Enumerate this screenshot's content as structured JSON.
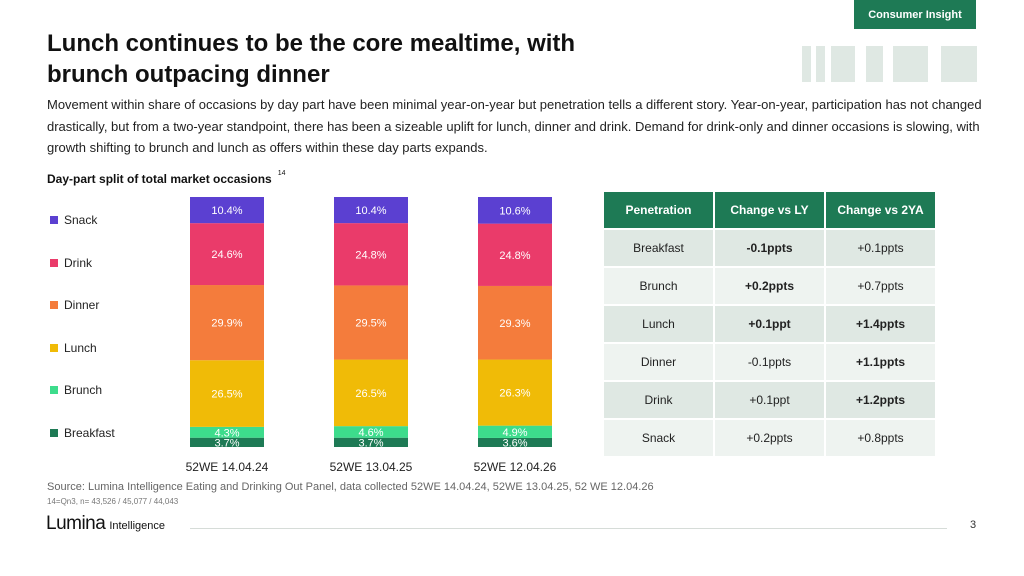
{
  "tag": "Consumer Insight",
  "title_lines": [
    "Lunch continues to be the core mealtime, with",
    "brunch outpacing dinner"
  ],
  "intro": "Movement within share of occasions by day part have been minimal year-on-year but penetration tells a different story. Year-on-year, participation has not changed drastically, but from a two-year standpoint, there has been a sizeable uplift for lunch, dinner and drink. Demand for drink-only and dinner occasions is slowing, with growth shifting to brunch and lunch as offers within these day parts expands.",
  "chart_data": {
    "type": "bar",
    "stacked": true,
    "title": "Day-part split of total market occasions",
    "title_superscript": "14",
    "categories": [
      "52WE 14.04.24",
      "52WE 13.04.25",
      "52WE 12.04.26"
    ],
    "series": [
      {
        "name": "Breakfast",
        "color": "#1e7a55",
        "values": [
          3.7,
          3.7,
          3.6
        ],
        "labels": [
          "3.7%",
          "3.7%",
          "3.6%"
        ]
      },
      {
        "name": "Brunch",
        "color": "#3ddc8c",
        "values": [
          4.3,
          4.6,
          4.9
        ],
        "labels": [
          "4.3%",
          "4.6%",
          "4.9%"
        ]
      },
      {
        "name": "Lunch",
        "color": "#f0bb07",
        "values": [
          26.5,
          26.5,
          26.3
        ],
        "labels": [
          "26.5%",
          "26.5%",
          "26.3%"
        ]
      },
      {
        "name": "Dinner",
        "color": "#f47c3c",
        "values": [
          29.9,
          29.5,
          29.3
        ],
        "labels": [
          "29.9%",
          "29.5%",
          "29.3%"
        ]
      },
      {
        "name": "Drink",
        "color": "#ea3b6a",
        "values": [
          24.6,
          24.8,
          24.8
        ],
        "labels": [
          "24.6%",
          "24.8%",
          "24.8%"
        ]
      },
      {
        "name": "Snack",
        "color": "#5b40d1",
        "values": [
          10.4,
          10.4,
          10.6
        ],
        "labels": [
          "10.4%",
          "10.4%",
          "10.6%"
        ]
      }
    ],
    "legend_position": "left",
    "ylim": [
      0,
      100
    ]
  },
  "table": {
    "headers": [
      "Penetration",
      "Change vs LY",
      "Change vs 2YA"
    ],
    "rows": [
      {
        "label": "Breakfast",
        "ly": "-0.1ppts",
        "ly_style": "neg",
        "ya": "+0.1ppts",
        "ya_style": ""
      },
      {
        "label": "Brunch",
        "ly": "+0.2ppts",
        "ly_style": "pos",
        "ya": "+0.7ppts",
        "ya_style": ""
      },
      {
        "label": "Lunch",
        "ly": "+0.1ppt",
        "ly_style": "pos",
        "ya": "+1.4ppts",
        "ya_style": "pos"
      },
      {
        "label": "Dinner",
        "ly": "-0.1ppts",
        "ly_style": "",
        "ya": "+1.1ppts",
        "ya_style": "pos"
      },
      {
        "label": "Drink",
        "ly": "+0.1ppt",
        "ly_style": "",
        "ya": "+1.2ppts",
        "ya_style": "pos"
      },
      {
        "label": "Snack",
        "ly": "+0.2ppts",
        "ly_style": "",
        "ya": "+0.8ppts",
        "ya_style": ""
      }
    ]
  },
  "source": "Source: Lumina Intelligence Eating and Drinking Out Panel, data collected 52WE 14.04.24, 52WE 13.04.25, 52 WE 12.04.26",
  "note": "14=Qn3, n= 43,526 / 45,077 / 44,043",
  "logo": {
    "main": "Lumina",
    "sub": "Intelligence"
  },
  "page_number": "3",
  "colors": {
    "brand": "#1e7a55",
    "accent_light": "#dfe8e3",
    "negative": "#c0111f",
    "positive": "#1e8a4a"
  }
}
